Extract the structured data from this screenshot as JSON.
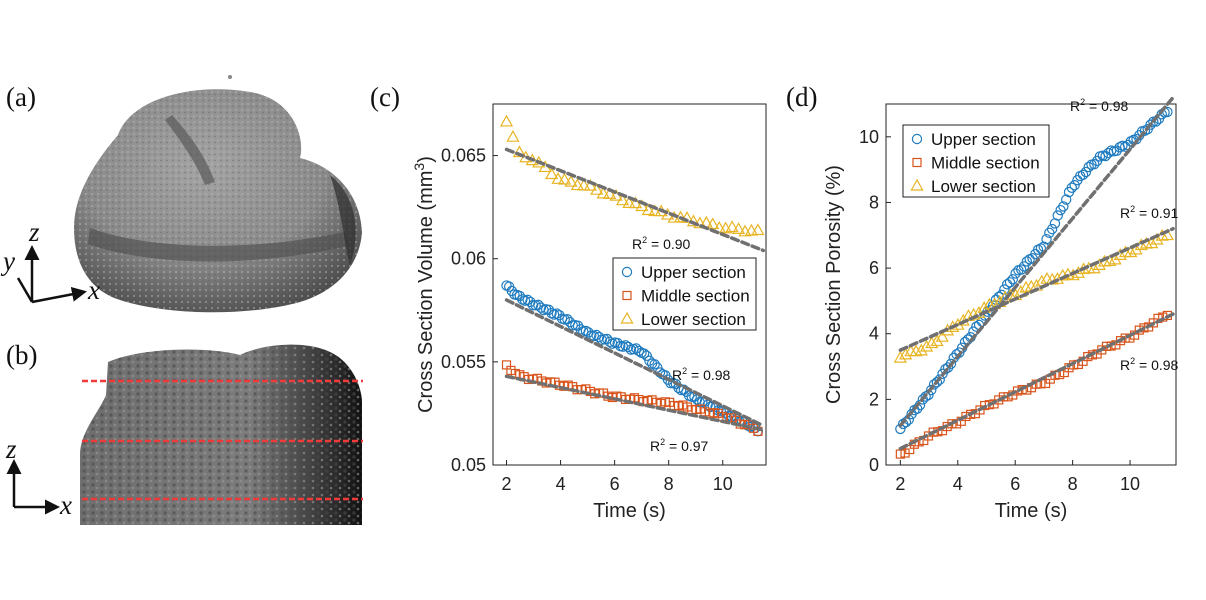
{
  "panels": {
    "a": {
      "label": "(a)",
      "axes": [
        "z",
        "y",
        "x"
      ]
    },
    "b": {
      "label": "(b)",
      "axes": [
        "z",
        "x"
      ]
    },
    "c": {
      "label": "(c)"
    },
    "d": {
      "label": "(d)"
    }
  },
  "colors": {
    "upper": "#1f7bbf",
    "middle": "#d9541a",
    "lower": "#e8b422",
    "fit": "#707070",
    "section_line": "#f03a3a"
  },
  "chart_data": [
    {
      "id": "c",
      "type": "scatter",
      "xlabel": "Time (s)",
      "ylabel_main": "Cross Section Volume (mm",
      "ylabel_sup": "3",
      "ylabel_end": ")",
      "xlim": [
        1.5,
        11.6
      ],
      "ylim": [
        0.05,
        0.0675
      ],
      "xticks": [
        2,
        4,
        6,
        8,
        10
      ],
      "xtick_labels": [
        "2",
        "4",
        "6",
        "8",
        "10"
      ],
      "yticks": [
        0.05,
        0.055,
        0.06,
        0.065
      ],
      "ytick_labels": [
        "0.05",
        "0.055",
        "0.06",
        "0.065"
      ],
      "legend_position": "middle-right",
      "series": [
        {
          "name": "Upper section",
          "marker": "circle",
          "color": "#1f7bbf",
          "t_start": 2.0,
          "t_end": 11.3,
          "n": 96,
          "knots_x": [
            2.0,
            2.4,
            3.0,
            4.0,
            5.0,
            6.0,
            7.0,
            8.0,
            9.0,
            10.0,
            11.3
          ],
          "knots_y": [
            0.0587,
            0.0582,
            0.0578,
            0.0572,
            0.0564,
            0.0559,
            0.0555,
            0.0541,
            0.0532,
            0.0526,
            0.0517
          ],
          "fit": [
            0.058,
            0.0519
          ],
          "r2": "0.98"
        },
        {
          "name": "Middle section",
          "marker": "square",
          "color": "#d9541a",
          "t_start": 2.0,
          "t_end": 11.3,
          "n": 58,
          "knots_x": [
            2.0,
            2.5,
            4.0,
            6.0,
            8.0,
            10.0,
            11.3
          ],
          "knots_y": [
            0.0548,
            0.0543,
            0.0539,
            0.0533,
            0.053,
            0.0524,
            0.0517
          ],
          "fit": [
            0.0543,
            0.0517
          ],
          "r2": "0.97"
        },
        {
          "name": "Lower section",
          "marker": "triangle",
          "color": "#e8b422",
          "t_start": 2.0,
          "t_end": 11.3,
          "n": 40,
          "knots_x": [
            2.0,
            2.5,
            3.0,
            4.0,
            5.0,
            6.0,
            7.0,
            8.0,
            9.0,
            10.0,
            11.3
          ],
          "knots_y": [
            0.0667,
            0.065,
            0.0648,
            0.0638,
            0.0635,
            0.063,
            0.0625,
            0.0621,
            0.0618,
            0.0615,
            0.0613
          ],
          "fit": [
            0.0653,
            0.0604
          ],
          "r2": "0.90"
        }
      ],
      "fit_line": {
        "x0": 2.0,
        "x1": 11.5
      }
    },
    {
      "id": "d",
      "type": "scatter",
      "xlabel": "Time (s)",
      "ylabel": "Cross Section Porosity (%)",
      "xlim": [
        1.5,
        11.6
      ],
      "ylim": [
        0,
        11
      ],
      "xticks": [
        2,
        4,
        6,
        8,
        10
      ],
      "xtick_labels": [
        "2",
        "4",
        "6",
        "8",
        "10"
      ],
      "yticks": [
        0,
        2,
        4,
        6,
        8,
        10
      ],
      "ytick_labels": [
        "0",
        "2",
        "4",
        "6",
        "8",
        "10"
      ],
      "legend_position": "top-left",
      "series": [
        {
          "name": "Upper section",
          "marker": "circle",
          "color": "#1f7bbf",
          "t_start": 2.0,
          "t_end": 11.3,
          "n": 96,
          "knots_x": [
            2.0,
            3.0,
            4.0,
            5.0,
            6.0,
            7.0,
            7.5,
            8.0,
            8.5,
            9.0,
            10.0,
            11.3
          ],
          "knots_y": [
            1.1,
            2.2,
            3.4,
            4.6,
            5.8,
            6.7,
            7.6,
            8.5,
            9.0,
            9.4,
            9.8,
            10.8
          ],
          "fit": [
            1.2,
            11.2
          ],
          "r2": "0.98"
        },
        {
          "name": "Middle section",
          "marker": "square",
          "color": "#d9541a",
          "t_start": 2.0,
          "t_end": 11.3,
          "n": 58,
          "knots_x": [
            2.0,
            3.0,
            4.0,
            5.0,
            6.0,
            7.0,
            8.0,
            9.0,
            10.0,
            11.3
          ],
          "knots_y": [
            0.3,
            0.9,
            1.3,
            1.8,
            2.2,
            2.5,
            3.0,
            3.5,
            3.9,
            4.6
          ],
          "fit": [
            0.5,
            4.6
          ],
          "r2": "0.98"
        },
        {
          "name": "Lower section",
          "marker": "triangle",
          "color": "#e8b422",
          "t_start": 2.0,
          "t_end": 11.3,
          "n": 52,
          "knots_x": [
            2.0,
            3.0,
            4.0,
            5.0,
            6.0,
            7.0,
            8.0,
            9.0,
            10.0,
            11.3
          ],
          "knots_y": [
            3.3,
            3.6,
            4.3,
            4.8,
            5.2,
            5.6,
            5.8,
            6.1,
            6.5,
            7.0
          ],
          "fit": [
            3.5,
            7.2
          ],
          "r2": "0.91"
        }
      ],
      "fit_line": {
        "x0": 2.0,
        "x1": 11.5
      }
    }
  ]
}
